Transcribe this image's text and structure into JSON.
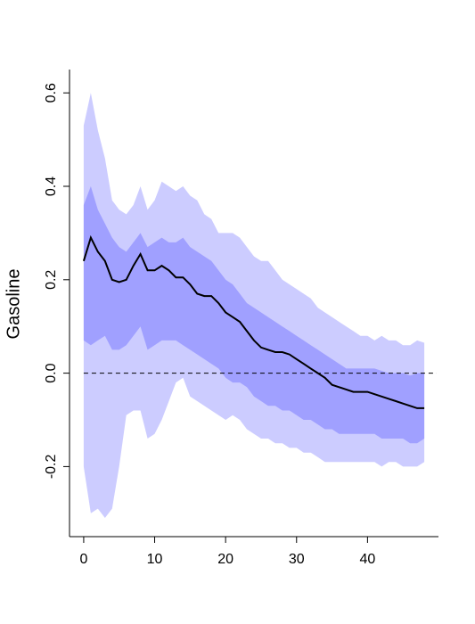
{
  "chart_data": {
    "type": "area",
    "title": "",
    "xlabel": "",
    "ylabel": "Gasoline",
    "xlim": [
      -2,
      50
    ],
    "ylim": [
      -0.35,
      0.65
    ],
    "xticks": [
      0,
      10,
      20,
      30,
      40
    ],
    "yticks": [
      -0.2,
      0.0,
      0.2,
      0.4,
      0.6
    ],
    "xtick_labels": [
      "0",
      "10",
      "20",
      "30",
      "40"
    ],
    "ytick_labels": [
      "-0.2",
      "0.0",
      "0.2",
      "0.4",
      "0.6"
    ],
    "grid": false,
    "legend": "none",
    "reference_line": {
      "y": 0.0,
      "style": "dashed"
    },
    "colors": {
      "outer_band": "#ccccff",
      "inner_band": "#a0a0ff",
      "median": "#000000"
    },
    "x": [
      0,
      1,
      2,
      3,
      4,
      5,
      6,
      7,
      8,
      9,
      10,
      11,
      12,
      13,
      14,
      15,
      16,
      17,
      18,
      19,
      20,
      21,
      22,
      23,
      24,
      25,
      26,
      27,
      28,
      29,
      30,
      31,
      32,
      33,
      34,
      35,
      36,
      37,
      38,
      39,
      40,
      41,
      42,
      43,
      44,
      45,
      46,
      47,
      48
    ],
    "series": [
      {
        "values": [
          0.24,
          0.29,
          0.26,
          0.24,
          0.2,
          0.195,
          0.2,
          0.23,
          0.255,
          0.22,
          0.22,
          0.23,
          0.22,
          0.205,
          0.205,
          0.19,
          0.17,
          0.165,
          0.165,
          0.15,
          0.13,
          0.12,
          0.11,
          0.09,
          0.07,
          0.055,
          0.05,
          0.045,
          0.045,
          0.04,
          0.03,
          0.02,
          0.01,
          0.0,
          -0.01,
          -0.025,
          -0.03,
          -0.035,
          -0.04,
          -0.04,
          -0.04,
          -0.045,
          -0.05,
          -0.055,
          -0.06,
          -0.065,
          -0.07,
          -0.075,
          -0.075
        ]
      }
    ],
    "bands": [
      {
        "level": "outer",
        "lower": [
          -0.2,
          -0.3,
          -0.29,
          -0.31,
          -0.29,
          -0.2,
          -0.09,
          -0.08,
          -0.08,
          -0.14,
          -0.13,
          -0.1,
          -0.06,
          -0.02,
          -0.01,
          -0.05,
          -0.06,
          -0.07,
          -0.08,
          -0.09,
          -0.1,
          -0.09,
          -0.1,
          -0.12,
          -0.13,
          -0.14,
          -0.14,
          -0.15,
          -0.15,
          -0.16,
          -0.16,
          -0.17,
          -0.17,
          -0.18,
          -0.19,
          -0.19,
          -0.19,
          -0.19,
          -0.19,
          -0.19,
          -0.19,
          -0.19,
          -0.2,
          -0.19,
          -0.19,
          -0.2,
          -0.2,
          -0.2,
          -0.19
        ],
        "upper": [
          0.53,
          0.6,
          0.52,
          0.46,
          0.37,
          0.35,
          0.34,
          0.36,
          0.4,
          0.35,
          0.37,
          0.41,
          0.4,
          0.39,
          0.4,
          0.38,
          0.37,
          0.34,
          0.33,
          0.3,
          0.3,
          0.3,
          0.29,
          0.27,
          0.25,
          0.24,
          0.24,
          0.22,
          0.2,
          0.19,
          0.18,
          0.17,
          0.16,
          0.14,
          0.13,
          0.12,
          0.11,
          0.1,
          0.09,
          0.08,
          0.08,
          0.07,
          0.08,
          0.07,
          0.07,
          0.06,
          0.06,
          0.07,
          0.065
        ]
      },
      {
        "level": "inner",
        "lower": [
          0.07,
          0.06,
          0.07,
          0.08,
          0.05,
          0.05,
          0.06,
          0.08,
          0.1,
          0.05,
          0.06,
          0.07,
          0.07,
          0.07,
          0.06,
          0.05,
          0.04,
          0.03,
          0.02,
          0.01,
          -0.01,
          -0.02,
          -0.02,
          -0.03,
          -0.05,
          -0.06,
          -0.07,
          -0.07,
          -0.08,
          -0.08,
          -0.09,
          -0.1,
          -0.1,
          -0.11,
          -0.12,
          -0.12,
          -0.13,
          -0.13,
          -0.13,
          -0.13,
          -0.13,
          -0.13,
          -0.14,
          -0.14,
          -0.14,
          -0.14,
          -0.15,
          -0.15,
          -0.14
        ],
        "upper": [
          0.36,
          0.4,
          0.35,
          0.32,
          0.29,
          0.27,
          0.26,
          0.28,
          0.3,
          0.27,
          0.28,
          0.29,
          0.28,
          0.28,
          0.29,
          0.27,
          0.26,
          0.25,
          0.24,
          0.22,
          0.2,
          0.19,
          0.17,
          0.15,
          0.14,
          0.13,
          0.12,
          0.11,
          0.1,
          0.09,
          0.08,
          0.07,
          0.06,
          0.05,
          0.04,
          0.03,
          0.02,
          0.01,
          0.01,
          0.01,
          0.01,
          0.01,
          0.005,
          0.0,
          0.0,
          0.0,
          -0.005,
          0.0,
          0.0
        ]
      }
    ]
  }
}
